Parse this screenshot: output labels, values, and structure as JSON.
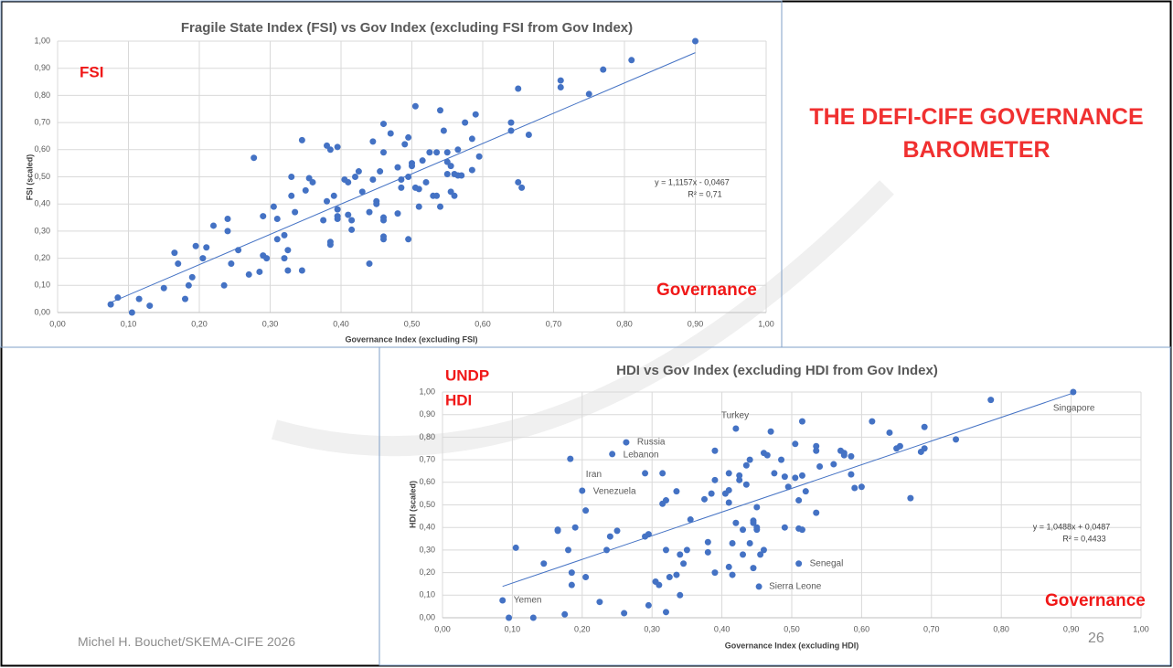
{
  "chart_data": [
    {
      "type": "scatter",
      "title": "Fragile State Index (FSI) vs Gov Index (excluding FSI from Gov Index)",
      "x_label": "Governance Index (excluding FSI)",
      "y_label": "FSI (scaled)",
      "annotations": [
        "FSI",
        "Governance"
      ],
      "color": "#4472c4",
      "grid": true,
      "xlim": [
        0,
        1
      ],
      "ylim": [
        0,
        1
      ],
      "xticks": [
        {
          "value": 0,
          "label": "0,00"
        },
        {
          "value": 0.1,
          "label": "0,10"
        },
        {
          "value": 0.2,
          "label": "0,20"
        },
        {
          "value": 0.3,
          "label": "0,30"
        },
        {
          "value": 0.4,
          "label": "0,40"
        },
        {
          "value": 0.5,
          "label": "0,50"
        },
        {
          "value": 0.6,
          "label": "0,60"
        },
        {
          "value": 0.7,
          "label": "0,70"
        },
        {
          "value": 0.8,
          "label": "0,80"
        },
        {
          "value": 0.9,
          "label": "0,90"
        },
        {
          "value": 1,
          "label": "1,00"
        }
      ],
      "yticks": [
        {
          "value": 0,
          "label": "0,00"
        },
        {
          "value": 0.1,
          "label": "0,10"
        },
        {
          "value": 0.2,
          "label": "0,20"
        },
        {
          "value": 0.3,
          "label": "0,30"
        },
        {
          "value": 0.4,
          "label": "0,40"
        },
        {
          "value": 0.5,
          "label": "0,50"
        },
        {
          "value": 0.6,
          "label": "0,60"
        },
        {
          "value": 0.7,
          "label": "0,70"
        },
        {
          "value": 0.8,
          "label": "0,80"
        },
        {
          "value": 0.9,
          "label": "0,90"
        },
        {
          "value": 1,
          "label": "1,00"
        }
      ],
      "trendline": {
        "slope": 1.1157,
        "intercept": -0.0467,
        "label": "y = 1,1157x - 0,0467",
        "r2": 0.71,
        "r2_label": "R² = 0,71"
      },
      "x": [
        0.075,
        0.085,
        0.105,
        0.115,
        0.13,
        0.15,
        0.165,
        0.17,
        0.18,
        0.185,
        0.19,
        0.195,
        0.205,
        0.21,
        0.22,
        0.235,
        0.24,
        0.24,
        0.245,
        0.255,
        0.27,
        0.277,
        0.285,
        0.29,
        0.29,
        0.295,
        0.305,
        0.31,
        0.31,
        0.32,
        0.32,
        0.325,
        0.325,
        0.33,
        0.33,
        0.335,
        0.345,
        0.345,
        0.35,
        0.355,
        0.36,
        0.375,
        0.38,
        0.385,
        0.38,
        0.385,
        0.385,
        0.39,
        0.395,
        0.395,
        0.395,
        0.395,
        0.405,
        0.41,
        0.41,
        0.415,
        0.415,
        0.42,
        0.425,
        0.43,
        0.44,
        0.44,
        0.445,
        0.445,
        0.45,
        0.45,
        0.455,
        0.46,
        0.46,
        0.46,
        0.46,
        0.46,
        0.46,
        0.47,
        0.48,
        0.48,
        0.485,
        0.485,
        0.49,
        0.495,
        0.495,
        0.495,
        0.5,
        0.5,
        0.505,
        0.505,
        0.51,
        0.51,
        0.515,
        0.52,
        0.525,
        0.53,
        0.535,
        0.535,
        0.54,
        0.54,
        0.545,
        0.55,
        0.55,
        0.55,
        0.555,
        0.555,
        0.56,
        0.56,
        0.565,
        0.565,
        0.57,
        0.575,
        0.585,
        0.585,
        0.59,
        0.595,
        0.64,
        0.64,
        0.65,
        0.65,
        0.655,
        0.665,
        0.71,
        0.71,
        0.75,
        0.77,
        0.81,
        0.9
      ],
      "values": [
        0.03,
        0.055,
        0.0,
        0.05,
        0.025,
        0.09,
        0.22,
        0.18,
        0.05,
        0.1,
        0.13,
        0.245,
        0.2,
        0.24,
        0.32,
        0.1,
        0.3,
        0.345,
        0.18,
        0.23,
        0.14,
        0.57,
        0.15,
        0.355,
        0.21,
        0.2,
        0.39,
        0.27,
        0.345,
        0.285,
        0.2,
        0.155,
        0.23,
        0.5,
        0.43,
        0.37,
        0.635,
        0.155,
        0.45,
        0.495,
        0.48,
        0.34,
        0.615,
        0.6,
        0.41,
        0.26,
        0.25,
        0.43,
        0.61,
        0.38,
        0.355,
        0.345,
        0.49,
        0.48,
        0.36,
        0.34,
        0.305,
        0.5,
        0.52,
        0.445,
        0.18,
        0.37,
        0.63,
        0.49,
        0.4,
        0.41,
        0.52,
        0.695,
        0.59,
        0.35,
        0.34,
        0.28,
        0.27,
        0.66,
        0.535,
        0.365,
        0.46,
        0.49,
        0.62,
        0.645,
        0.5,
        0.27,
        0.55,
        0.54,
        0.76,
        0.46,
        0.39,
        0.455,
        0.56,
        0.48,
        0.59,
        0.43,
        0.43,
        0.59,
        0.745,
        0.39,
        0.67,
        0.59,
        0.51,
        0.555,
        0.54,
        0.445,
        0.43,
        0.51,
        0.6,
        0.505,
        0.505,
        0.7,
        0.525,
        0.64,
        0.73,
        0.575,
        0.7,
        0.67,
        0.825,
        0.48,
        0.46,
        0.655,
        0.855,
        0.83,
        0.805,
        0.895,
        0.93,
        1.0
      ]
    },
    {
      "type": "scatter",
      "title": "HDI vs Gov Index (excluding HDI from Gov Index)",
      "x_label": "Governance Index (excluding HDI)",
      "y_label": "HDI (scaled)",
      "annotations": [
        "UNDP",
        "HDI",
        "Governance"
      ],
      "grid": true,
      "xlim": [
        0,
        1
      ],
      "ylim": [
        0,
        1
      ],
      "xticks": [
        {
          "value": 0,
          "label": "0,00"
        },
        {
          "value": 0.1,
          "label": "0,10"
        },
        {
          "value": 0.2,
          "label": "0,20"
        },
        {
          "value": 0.3,
          "label": "0,30"
        },
        {
          "value": 0.4,
          "label": "0,40"
        },
        {
          "value": 0.5,
          "label": "0,50"
        },
        {
          "value": 0.6,
          "label": "0,60"
        },
        {
          "value": 0.7,
          "label": "0,70"
        },
        {
          "value": 0.8,
          "label": "0,80"
        },
        {
          "value": 0.9,
          "label": "0,90"
        },
        {
          "value": 1,
          "label": "1,00"
        }
      ],
      "yticks": [
        {
          "value": 0,
          "label": "0,00"
        },
        {
          "value": 0.1,
          "label": "0,10"
        },
        {
          "value": 0.2,
          "label": "0,20"
        },
        {
          "value": 0.3,
          "label": "0,30"
        },
        {
          "value": 0.4,
          "label": "0,40"
        },
        {
          "value": 0.5,
          "label": "0,50"
        },
        {
          "value": 0.6,
          "label": "0,60"
        },
        {
          "value": 0.7,
          "label": "0,70"
        },
        {
          "value": 0.8,
          "label": "0,80"
        },
        {
          "value": 0.9,
          "label": "0,90"
        },
        {
          "value": 1,
          "label": "1,00"
        }
      ],
      "trendline": {
        "slope": 1.0488,
        "intercept": 0.0487,
        "label": "y = 1,0488x + 0,0487",
        "r2": 0.4433,
        "r2_label": "R² = 0,4433"
      },
      "series": [
        {
          "color": "#4472c4",
          "x": [
            0.095,
            0.105,
            0.13,
            0.145,
            0.165,
            0.165,
            0.175,
            0.18,
            0.185,
            0.185,
            0.19,
            0.205,
            0.205,
            0.225,
            0.235,
            0.24,
            0.25,
            0.26,
            0.29,
            0.29,
            0.295,
            0.295,
            0.305,
            0.31,
            0.315,
            0.315,
            0.32,
            0.32,
            0.32,
            0.325,
            0.335,
            0.335,
            0.34,
            0.34,
            0.345,
            0.35,
            0.355,
            0.375,
            0.38,
            0.38,
            0.385,
            0.39,
            0.39,
            0.39,
            0.405,
            0.41,
            0.41,
            0.41,
            0.41,
            0.415,
            0.415,
            0.42,
            0.425,
            0.425,
            0.43,
            0.43,
            0.435,
            0.435,
            0.44,
            0.44,
            0.445,
            0.445,
            0.445,
            0.45,
            0.45,
            0.45,
            0.455,
            0.46,
            0.46,
            0.465,
            0.47,
            0.475,
            0.485,
            0.49,
            0.49,
            0.495,
            0.505,
            0.505,
            0.51,
            0.51,
            0.515,
            0.515,
            0.515,
            0.52,
            0.535,
            0.535,
            0.535,
            0.54,
            0.56,
            0.57,
            0.575,
            0.575,
            0.585,
            0.585,
            0.59,
            0.6,
            0.615,
            0.64,
            0.65,
            0.655,
            0.67,
            0.685,
            0.69,
            0.69,
            0.735,
            0.785
          ],
          "values": [
            0.0,
            0.31,
            0.0,
            0.24,
            0.39,
            0.385,
            0.015,
            0.3,
            0.145,
            0.2,
            0.4,
            0.475,
            0.18,
            0.07,
            0.3,
            0.36,
            0.385,
            0.02,
            0.36,
            0.64,
            0.055,
            0.37,
            0.16,
            0.145,
            0.505,
            0.64,
            0.52,
            0.3,
            0.025,
            0.18,
            0.56,
            0.19,
            0.28,
            0.1,
            0.24,
            0.3,
            0.435,
            0.525,
            0.29,
            0.335,
            0.55,
            0.61,
            0.74,
            0.2,
            0.55,
            0.565,
            0.51,
            0.64,
            0.225,
            0.19,
            0.33,
            0.42,
            0.63,
            0.61,
            0.39,
            0.28,
            0.59,
            0.675,
            0.33,
            0.7,
            0.22,
            0.43,
            0.42,
            0.4,
            0.39,
            0.49,
            0.28,
            0.3,
            0.73,
            0.72,
            0.825,
            0.64,
            0.7,
            0.625,
            0.4,
            0.58,
            0.77,
            0.62,
            0.395,
            0.52,
            0.87,
            0.63,
            0.39,
            0.56,
            0.76,
            0.74,
            0.465,
            0.67,
            0.68,
            0.74,
            0.72,
            0.73,
            0.715,
            0.635,
            0.575,
            0.58,
            0.87,
            0.82,
            0.75,
            0.76,
            0.53,
            0.735,
            0.75,
            0.845,
            0.79,
            0.965
          ]
        },
        {
          "color": "#4472c4",
          "x": [
            0.903,
            0.42,
            0.263,
            0.243,
            0.183,
            0.2,
            0.086,
            0.51,
            0.453
          ],
          "values": [
            1.0,
            0.838,
            0.777,
            0.725,
            0.704,
            0.563,
            0.077,
            0.24,
            0.138
          ],
          "labels": [
            "Singapore",
            "Turkey",
            "Russia",
            "Lebanon",
            "Iran",
            "Venezuela",
            "Yemen",
            "Senegal",
            "Sierra Leone"
          ]
        }
      ]
    }
  ],
  "slide": {
    "heading": "THE DEFI-CIFE GOVERNANCE BAROMETER",
    "footer": "Michel H. Bouchet/SKEMA-CIFE 2026",
    "page_number": "26"
  }
}
